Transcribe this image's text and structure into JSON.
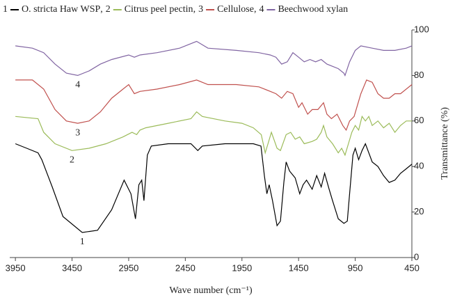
{
  "chart_data": {
    "type": "line",
    "x_label": "Wave number (cm⁻¹)",
    "y_label": "Transmittance (%)",
    "xlim": [
      4000,
      450
    ],
    "xticks": [
      3950,
      3450,
      2950,
      2450,
      1950,
      1450,
      950,
      450
    ],
    "ylim": [
      0,
      100
    ],
    "yticks": [
      0,
      20,
      40,
      60,
      80,
      100
    ],
    "y_axis_side": "right",
    "grid": false,
    "series": [
      {
        "label": "1",
        "name": "O. stricta Haw WSP",
        "color": "#000000",
        "x": [
          3950,
          3850,
          3750,
          3717,
          3625,
          3530,
          3360,
          3225,
          3100,
          2990,
          2930,
          2890,
          2860,
          2835,
          2815,
          2785,
          2750,
          2600,
          2400,
          2340,
          2300,
          2100,
          1950,
          1850,
          1782,
          1752,
          1730,
          1710,
          1680,
          1640,
          1610,
          1580,
          1560,
          1530,
          1480,
          1440,
          1410,
          1380,
          1330,
          1290,
          1250,
          1220,
          1180,
          1150,
          1100,
          1050,
          1020,
          1000,
          970,
          950,
          920,
          890,
          860,
          830,
          800,
          750,
          700,
          650,
          600,
          550,
          500,
          450
        ],
        "values": [
          50,
          48,
          46,
          43,
          31,
          18,
          11,
          12,
          21,
          34,
          28,
          17,
          32,
          34,
          25,
          45,
          49,
          50,
          50,
          47,
          49,
          50,
          50,
          50,
          49,
          36,
          28,
          32,
          25,
          14,
          16,
          33,
          42,
          38,
          35,
          28,
          32,
          34,
          30,
          36,
          31,
          37,
          30,
          25,
          17,
          15,
          16,
          28,
          45,
          48,
          43,
          47,
          50,
          46,
          42,
          40,
          36,
          33,
          34,
          37,
          39,
          41
        ]
      },
      {
        "label": "2",
        "name": "Citrus peel pectin",
        "color": "#9bbb59",
        "x": [
          3950,
          3750,
          3700,
          3600,
          3450,
          3300,
          3150,
          3000,
          2920,
          2880,
          2850,
          2800,
          2600,
          2400,
          2350,
          2300,
          2100,
          1950,
          1850,
          1780,
          1745,
          1720,
          1690,
          1640,
          1610,
          1560,
          1520,
          1480,
          1440,
          1400,
          1330,
          1290,
          1250,
          1230,
          1200,
          1150,
          1100,
          1070,
          1040,
          1010,
          980,
          950,
          920,
          890,
          860,
          830,
          800,
          750,
          700,
          650,
          600,
          550,
          500,
          450
        ],
        "values": [
          62,
          61,
          55,
          50,
          47,
          48,
          50,
          53,
          55,
          54,
          56,
          57,
          59,
          61,
          64,
          62,
          60,
          59,
          57,
          54,
          46,
          50,
          55,
          48,
          47,
          54,
          55,
          52,
          53,
          50,
          51,
          52,
          55,
          58,
          53,
          50,
          46,
          48,
          45,
          50,
          55,
          58,
          56,
          62,
          60,
          62,
          58,
          60,
          57,
          59,
          55,
          58,
          60,
          60
        ]
      },
      {
        "label": "3",
        "name": "Cellulose",
        "color": "#c0504d",
        "x": [
          3950,
          3800,
          3700,
          3600,
          3500,
          3400,
          3300,
          3200,
          3100,
          3000,
          2950,
          2900,
          2850,
          2700,
          2500,
          2350,
          2250,
          2000,
          1800,
          1700,
          1650,
          1600,
          1550,
          1500,
          1450,
          1420,
          1370,
          1330,
          1280,
          1230,
          1200,
          1160,
          1110,
          1060,
          1030,
          1000,
          960,
          900,
          850,
          800,
          750,
          700,
          650,
          600,
          550,
          450
        ],
        "values": [
          78,
          78,
          74,
          65,
          60,
          59,
          60,
          64,
          70,
          74,
          76,
          72,
          73,
          74,
          76,
          78,
          76,
          76,
          75,
          73,
          72,
          70,
          73,
          72,
          66,
          68,
          63,
          65,
          65,
          68,
          63,
          61,
          63,
          58,
          56,
          60,
          62,
          72,
          78,
          77,
          72,
          70,
          70,
          72,
          72,
          76
        ]
      },
      {
        "label": "4",
        "name": "Beechwood xylan",
        "color": "#8064a2",
        "x": [
          3950,
          3800,
          3700,
          3600,
          3500,
          3400,
          3300,
          3200,
          3100,
          2950,
          2900,
          2850,
          2700,
          2500,
          2350,
          2250,
          2000,
          1800,
          1700,
          1650,
          1600,
          1550,
          1500,
          1450,
          1400,
          1350,
          1300,
          1250,
          1200,
          1150,
          1100,
          1050,
          1040,
          1000,
          950,
          900,
          800,
          700,
          600,
          500,
          450
        ],
        "values": [
          93,
          92,
          90,
          85,
          81,
          80,
          82,
          85,
          87,
          89,
          88,
          89,
          90,
          92,
          95,
          92,
          91,
          90,
          89,
          88,
          85,
          86,
          90,
          88,
          86,
          87,
          86,
          87,
          85,
          84,
          83,
          81,
          80,
          86,
          91,
          93,
          92,
          91,
          91,
          92,
          93
        ]
      }
    ]
  }
}
